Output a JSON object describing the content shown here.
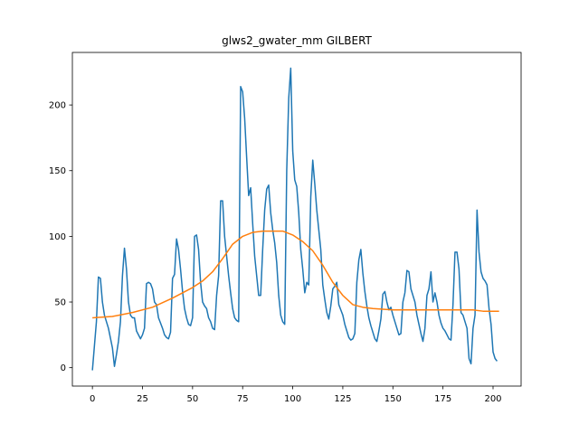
{
  "chart_data": {
    "type": "line",
    "title": "glws2_gwater_mm GILBERT",
    "xlabel": "",
    "ylabel": "",
    "xlim": [
      -10,
      214
    ],
    "ylim": [
      -14,
      240
    ],
    "grid": false,
    "x_ticks": [
      0,
      25,
      50,
      75,
      100,
      125,
      150,
      175,
      200
    ],
    "y_ticks": [
      0,
      50,
      100,
      150,
      200
    ],
    "colors": {
      "raw": "#1f77b4",
      "smoothed": "#ff7f0e"
    },
    "series": [
      {
        "key": "raw",
        "points": [
          [
            0,
            -2
          ],
          [
            2,
            35
          ],
          [
            3,
            69
          ],
          [
            4,
            68
          ],
          [
            5,
            50
          ],
          [
            6,
            40
          ],
          [
            8,
            30
          ],
          [
            10,
            15
          ],
          [
            11,
            1
          ],
          [
            12,
            10
          ],
          [
            13,
            20
          ],
          [
            14,
            35
          ],
          [
            15,
            70
          ],
          [
            16,
            91
          ],
          [
            17,
            75
          ],
          [
            18,
            50
          ],
          [
            19,
            40
          ],
          [
            20,
            38
          ],
          [
            21,
            38
          ],
          [
            22,
            28
          ],
          [
            24,
            22
          ],
          [
            25,
            25
          ],
          [
            26,
            30
          ],
          [
            27,
            64
          ],
          [
            28,
            65
          ],
          [
            29,
            64
          ],
          [
            30,
            60
          ],
          [
            31,
            50
          ],
          [
            32,
            48
          ],
          [
            33,
            38
          ],
          [
            34,
            34
          ],
          [
            35,
            30
          ],
          [
            36,
            25
          ],
          [
            37,
            23
          ],
          [
            38,
            22
          ],
          [
            39,
            27
          ],
          [
            40,
            68
          ],
          [
            41,
            71
          ],
          [
            42,
            98
          ],
          [
            43,
            90
          ],
          [
            44,
            75
          ],
          [
            45,
            58
          ],
          [
            46,
            45
          ],
          [
            47,
            38
          ],
          [
            48,
            33
          ],
          [
            49,
            32
          ],
          [
            50,
            38
          ],
          [
            51,
            100
          ],
          [
            52,
            101
          ],
          [
            53,
            90
          ],
          [
            54,
            65
          ],
          [
            55,
            50
          ],
          [
            56,
            47
          ],
          [
            57,
            45
          ],
          [
            58,
            38
          ],
          [
            59,
            35
          ],
          [
            60,
            30
          ],
          [
            61,
            29
          ],
          [
            62,
            55
          ],
          [
            63,
            70
          ],
          [
            64,
            127
          ],
          [
            65,
            127
          ],
          [
            66,
            100
          ],
          [
            67,
            85
          ],
          [
            68,
            70
          ],
          [
            69,
            57
          ],
          [
            70,
            45
          ],
          [
            71,
            38
          ],
          [
            72,
            36
          ],
          [
            73,
            35
          ],
          [
            74,
            214
          ],
          [
            75,
            210
          ],
          [
            76,
            190
          ],
          [
            77,
            160
          ],
          [
            78,
            131
          ],
          [
            79,
            137
          ],
          [
            80,
            110
          ],
          [
            81,
            85
          ],
          [
            82,
            70
          ],
          [
            83,
            55
          ],
          [
            84,
            55
          ],
          [
            85,
            90
          ],
          [
            86,
            120
          ],
          [
            87,
            136
          ],
          [
            88,
            139
          ],
          [
            89,
            118
          ],
          [
            90,
            105
          ],
          [
            91,
            95
          ],
          [
            92,
            80
          ],
          [
            93,
            55
          ],
          [
            94,
            40
          ],
          [
            95,
            35
          ],
          [
            96,
            33
          ],
          [
            97,
            150
          ],
          [
            98,
            205
          ],
          [
            99,
            228
          ],
          [
            100,
            165
          ],
          [
            101,
            143
          ],
          [
            102,
            138
          ],
          [
            103,
            118
          ],
          [
            104,
            90
          ],
          [
            105,
            75
          ],
          [
            106,
            57
          ],
          [
            107,
            65
          ],
          [
            108,
            63
          ],
          [
            109,
            130
          ],
          [
            110,
            158
          ],
          [
            111,
            140
          ],
          [
            112,
            120
          ],
          [
            113,
            105
          ],
          [
            114,
            90
          ],
          [
            115,
            63
          ],
          [
            116,
            52
          ],
          [
            117,
            42
          ],
          [
            118,
            37
          ],
          [
            119,
            47
          ],
          [
            120,
            60
          ],
          [
            121,
            62
          ],
          [
            122,
            65
          ],
          [
            123,
            48
          ],
          [
            124,
            44
          ],
          [
            125,
            40
          ],
          [
            126,
            33
          ],
          [
            127,
            28
          ],
          [
            128,
            23
          ],
          [
            129,
            21
          ],
          [
            130,
            22
          ],
          [
            131,
            26
          ],
          [
            132,
            65
          ],
          [
            133,
            82
          ],
          [
            134,
            90
          ],
          [
            135,
            72
          ],
          [
            136,
            58
          ],
          [
            137,
            47
          ],
          [
            138,
            38
          ],
          [
            139,
            32
          ],
          [
            140,
            27
          ],
          [
            141,
            22
          ],
          [
            142,
            20
          ],
          [
            143,
            28
          ],
          [
            144,
            37
          ],
          [
            145,
            56
          ],
          [
            146,
            58
          ],
          [
            147,
            50
          ],
          [
            148,
            44
          ],
          [
            149,
            46
          ],
          [
            150,
            40
          ],
          [
            151,
            35
          ],
          [
            152,
            30
          ],
          [
            153,
            25
          ],
          [
            154,
            26
          ],
          [
            155,
            50
          ],
          [
            156,
            57
          ],
          [
            157,
            74
          ],
          [
            158,
            73
          ],
          [
            159,
            60
          ],
          [
            160,
            55
          ],
          [
            161,
            50
          ],
          [
            162,
            40
          ],
          [
            163,
            33
          ],
          [
            164,
            26
          ],
          [
            165,
            20
          ],
          [
            166,
            30
          ],
          [
            167,
            55
          ],
          [
            168,
            60
          ],
          [
            169,
            73
          ],
          [
            170,
            50
          ],
          [
            171,
            57
          ],
          [
            172,
            50
          ],
          [
            173,
            40
          ],
          [
            174,
            34
          ],
          [
            175,
            30
          ],
          [
            176,
            28
          ],
          [
            177,
            25
          ],
          [
            178,
            22
          ],
          [
            179,
            21
          ],
          [
            180,
            48
          ],
          [
            181,
            88
          ],
          [
            182,
            88
          ],
          [
            183,
            75
          ],
          [
            184,
            42
          ],
          [
            185,
            40
          ],
          [
            186,
            35
          ],
          [
            187,
            30
          ],
          [
            188,
            7
          ],
          [
            189,
            3
          ],
          [
            190,
            30
          ],
          [
            191,
            40
          ],
          [
            192,
            120
          ],
          [
            193,
            88
          ],
          [
            194,
            73
          ],
          [
            195,
            68
          ],
          [
            196,
            66
          ],
          [
            197,
            63
          ],
          [
            198,
            45
          ],
          [
            199,
            33
          ],
          [
            200,
            12
          ],
          [
            201,
            7
          ],
          [
            202,
            5
          ]
        ]
      },
      {
        "key": "smoothed",
        "points": [
          [
            0,
            38
          ],
          [
            10,
            39
          ],
          [
            20,
            42
          ],
          [
            30,
            46
          ],
          [
            40,
            53
          ],
          [
            50,
            61
          ],
          [
            55,
            66
          ],
          [
            60,
            73
          ],
          [
            65,
            83
          ],
          [
            70,
            94
          ],
          [
            75,
            100
          ],
          [
            80,
            103
          ],
          [
            85,
            104
          ],
          [
            90,
            104
          ],
          [
            95,
            104
          ],
          [
            100,
            101
          ],
          [
            105,
            96
          ],
          [
            110,
            89
          ],
          [
            115,
            78
          ],
          [
            120,
            65
          ],
          [
            125,
            55
          ],
          [
            130,
            48
          ],
          [
            135,
            46
          ],
          [
            140,
            45
          ],
          [
            150,
            44
          ],
          [
            160,
            44
          ],
          [
            170,
            44
          ],
          [
            180,
            44
          ],
          [
            190,
            44
          ],
          [
            195,
            43
          ],
          [
            203,
            43
          ]
        ]
      }
    ]
  }
}
